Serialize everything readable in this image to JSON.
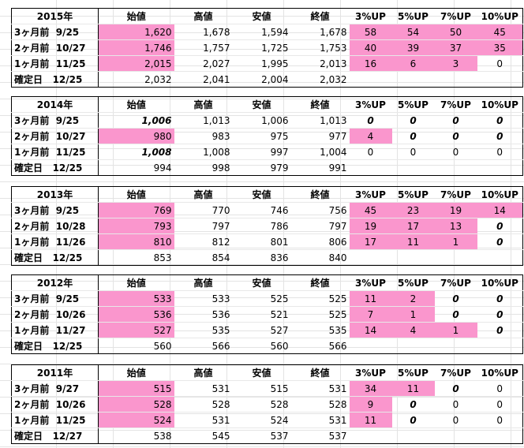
{
  "headers": [
    "始値",
    "高値",
    "安値",
    "終値",
    "3%UP",
    "5%UP",
    "7%UP",
    "10%UP"
  ],
  "blocks": [
    {
      "year": "2015年",
      "rows": [
        {
          "label": "3ヶ月前",
          "date": "9/25",
          "open": "1,620",
          "high": "1,678",
          "low": "1,594",
          "close": "1,678",
          "up3": "58",
          "up5": "54",
          "up7": "50",
          "up10": "45"
        },
        {
          "label": "2ヶ月前",
          "date": "10/27",
          "open": "1,746",
          "high": "1,757",
          "low": "1,725",
          "close": "1,753",
          "up3": "40",
          "up5": "39",
          "up7": "37",
          "up10": "35"
        },
        {
          "label": "1ヶ月前",
          "date": "11/25",
          "open": "2,015",
          "high": "2,027",
          "low": "1,995",
          "close": "2,013",
          "up3": "16",
          "up5": "6",
          "up7": "3",
          "up10": "0"
        },
        {
          "label": "確定日",
          "date": "12/25",
          "open": "2,032",
          "high": "2,041",
          "low": "2,004",
          "close": "2,032",
          "up3": "",
          "up5": "",
          "up7": "",
          "up10": ""
        }
      ]
    },
    {
      "year": "2014年",
      "rows": [
        {
          "label": "3ヶ月前",
          "date": "9/25",
          "open": "1,006",
          "high": "1,013",
          "low": "1,006",
          "close": "1,013",
          "up3": "0",
          "up5": "0",
          "up7": "0",
          "up10": "0"
        },
        {
          "label": "2ヶ月前",
          "date": "10/27",
          "open": "980",
          "high": "983",
          "low": "975",
          "close": "977",
          "up3": "4",
          "up5": "0",
          "up7": "0",
          "up10": "0"
        },
        {
          "label": "1ヶ月前",
          "date": "11/25",
          "open": "1,008",
          "high": "1,008",
          "low": "997",
          "close": "1,004",
          "up3": "0",
          "up5": "0",
          "up7": "0",
          "up10": "0"
        },
        {
          "label": "確定日",
          "date": "12/25",
          "open": "994",
          "high": "998",
          "low": "979",
          "close": "991",
          "up3": "",
          "up5": "",
          "up7": "",
          "up10": ""
        }
      ]
    },
    {
      "year": "2013年",
      "rows": [
        {
          "label": "3ヶ月前",
          "date": "9/25",
          "open": "769",
          "high": "770",
          "low": "746",
          "close": "756",
          "up3": "45",
          "up5": "23",
          "up7": "19",
          "up10": "14"
        },
        {
          "label": "2ヶ月前",
          "date": "10/28",
          "open": "793",
          "high": "797",
          "low": "786",
          "close": "797",
          "up3": "19",
          "up5": "17",
          "up7": "13",
          "up10": "0"
        },
        {
          "label": "1ヶ月前",
          "date": "11/26",
          "open": "810",
          "high": "812",
          "low": "801",
          "close": "806",
          "up3": "17",
          "up5": "11",
          "up7": "1",
          "up10": "0"
        },
        {
          "label": "確定日",
          "date": "12/25",
          "open": "853",
          "high": "854",
          "low": "836",
          "close": "840",
          "up3": "",
          "up5": "",
          "up7": "",
          "up10": ""
        }
      ]
    },
    {
      "year": "2012年",
      "rows": [
        {
          "label": "3ヶ月前",
          "date": "9/25",
          "open": "533",
          "high": "533",
          "low": "525",
          "close": "525",
          "up3": "11",
          "up5": "2",
          "up7": "0",
          "up10": "0"
        },
        {
          "label": "2ヶ月前",
          "date": "10/26",
          "open": "536",
          "high": "536",
          "low": "521",
          "close": "525",
          "up3": "7",
          "up5": "1",
          "up7": "0",
          "up10": "0"
        },
        {
          "label": "1ヶ月前",
          "date": "11/27",
          "open": "527",
          "high": "535",
          "low": "527",
          "close": "535",
          "up3": "14",
          "up5": "4",
          "up7": "1",
          "up10": "0"
        },
        {
          "label": "確定日",
          "date": "12/25",
          "open": "560",
          "high": "566",
          "low": "560",
          "close": "566",
          "up3": "",
          "up5": "",
          "up7": "",
          "up10": ""
        }
      ]
    },
    {
      "year": "2011年",
      "rows": [
        {
          "label": "3ヶ月前",
          "date": "9/27",
          "open": "515",
          "high": "531",
          "low": "515",
          "close": "531",
          "up3": "34",
          "up5": "11",
          "up7": "0",
          "up10": "0"
        },
        {
          "label": "2ヶ月前",
          "date": "10/26",
          "open": "528",
          "high": "528",
          "low": "528",
          "close": "528",
          "up3": "9",
          "up5": "0",
          "up7": "0",
          "up10": "0"
        },
        {
          "label": "1ヶ月前",
          "date": "11/25",
          "open": "524",
          "high": "531",
          "low": "524",
          "close": "531",
          "up3": "11",
          "up5": "0",
          "up7": "0",
          "up10": "0"
        },
        {
          "label": "確定日",
          "date": "12/27",
          "open": "538",
          "high": "545",
          "low": "537",
          "close": "537",
          "up3": "",
          "up5": "",
          "up7": "",
          "up10": ""
        }
      ]
    }
  ]
}
